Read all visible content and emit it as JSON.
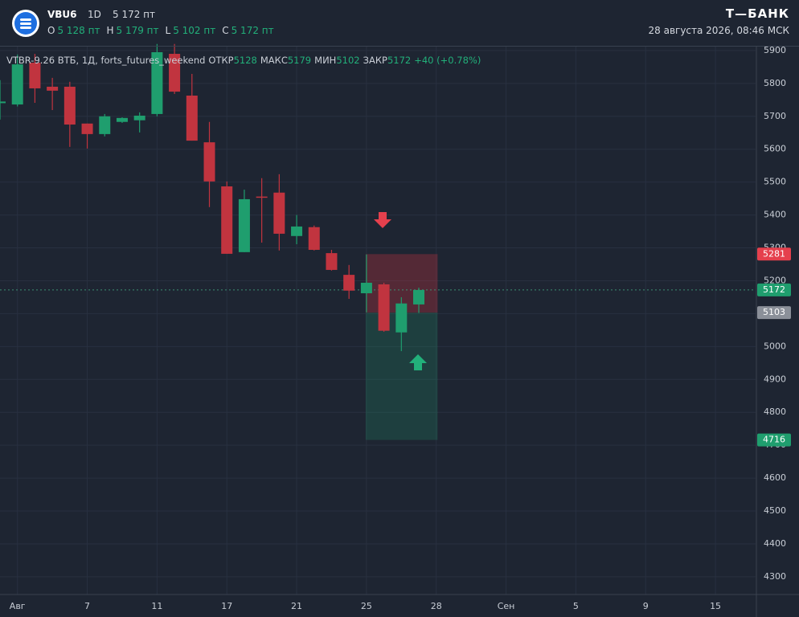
{
  "header": {
    "ticker": "VBU6",
    "interval": "1D",
    "price": "5 172 пт",
    "ohlc": [
      {
        "label": "O",
        "value": "5 128 пт"
      },
      {
        "label": "H",
        "value": "5 179 пт"
      },
      {
        "label": "L",
        "value": "5 102 пт"
      },
      {
        "label": "C",
        "value": "5 172 пт"
      }
    ],
    "brand": "Т—БАНК",
    "datetime": "28 августа 2026, 08:46 МСК"
  },
  "chart_data": {
    "type": "candlestick",
    "title": "VTBR-9.26 ВТБ, 1Д, forts_futures_weekend",
    "legend_items": [
      {
        "label": "ОТКР",
        "value": "5128"
      },
      {
        "label": "МАКС",
        "value": "5179"
      },
      {
        "label": "МИН",
        "value": "5102"
      },
      {
        "label": "ЗАКР",
        "value": "5172"
      }
    ],
    "change": "+40 (+0.78%)",
    "x": [
      -1,
      0,
      1,
      2,
      3,
      4,
      5,
      6,
      7,
      8,
      9,
      10,
      11,
      12,
      13,
      14,
      15,
      16,
      17,
      18,
      19,
      20,
      21,
      22,
      23
    ],
    "open": [
      5740,
      5736,
      5863,
      5790,
      5790,
      5678,
      5646,
      5683,
      5688,
      5707,
      5890,
      5763,
      5621,
      5487,
      5287,
      5456,
      5468,
      5336,
      5363,
      5284,
      5218,
      5162,
      5189,
      5043,
      5128
    ],
    "high": [
      5810,
      5888,
      5890,
      5817,
      5805,
      5678,
      5707,
      5697,
      5712,
      5920,
      5920,
      5829,
      5683,
      5502,
      5477,
      5512,
      5524,
      5400,
      5368,
      5294,
      5248,
      5280,
      5194,
      5150,
      5179
    ],
    "low": [
      5690,
      5730,
      5741,
      5719,
      5607,
      5602,
      5639,
      5680,
      5651,
      5700,
      5768,
      5626,
      5424,
      5282,
      5287,
      5316,
      5292,
      5311,
      5292,
      5231,
      5145,
      5104,
      5045,
      4986,
      5102
    ],
    "close": [
      5745,
      5858,
      5785,
      5778,
      5675,
      5646,
      5700,
      5695,
      5702,
      5895,
      5775,
      5626,
      5502,
      5282,
      5448,
      5454,
      5343,
      5365,
      5294,
      5233,
      5170,
      5194,
      5048,
      5131,
      5172
    ],
    "up_color": "#1f9e6e",
    "down_color": "#c1343f",
    "xlim": [
      -1,
      42.3
    ],
    "ylim": [
      4246,
      5912
    ],
    "xticks": [
      {
        "value": 0,
        "label": "Авг"
      },
      {
        "value": 4,
        "label": "7"
      },
      {
        "value": 8,
        "label": "11"
      },
      {
        "value": 12,
        "label": "17"
      },
      {
        "value": 16,
        "label": "21"
      },
      {
        "value": 20,
        "label": "25"
      },
      {
        "value": 24,
        "label": "28"
      },
      {
        "value": 28,
        "label": "Сен"
      },
      {
        "value": 32,
        "label": "5"
      },
      {
        "value": 36,
        "label": "9"
      },
      {
        "value": 40,
        "label": "15"
      }
    ],
    "yticks": [
      4300,
      4400,
      4500,
      4600,
      4700,
      4800,
      4900,
      5000,
      5100,
      5200,
      5300,
      5400,
      5500,
      5600,
      5700,
      5800,
      5900
    ],
    "grid": true,
    "price_labels": [
      {
        "value": 5281,
        "color": "#e5404d"
      },
      {
        "value": 5172,
        "color": "#1f9e6e"
      },
      {
        "value": 5103,
        "color": "#8b9099"
      },
      {
        "value": 4716,
        "color": "#1f9e6e"
      }
    ]
  }
}
